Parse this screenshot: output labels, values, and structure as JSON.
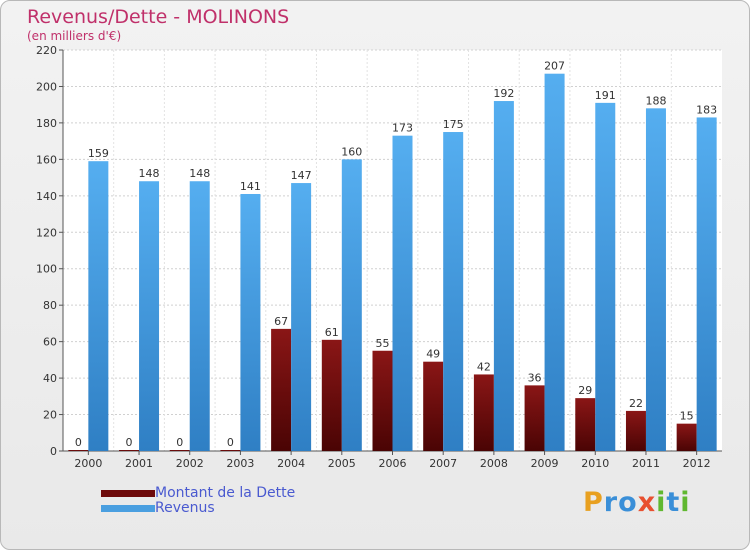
{
  "chart_data": {
    "type": "bar",
    "title": "Revenus/Dette - MOLINONS",
    "subtitle": "(en milliers d'€)",
    "categories": [
      "2000",
      "2001",
      "2002",
      "2003",
      "2004",
      "2005",
      "2006",
      "2007",
      "2008",
      "2009",
      "2010",
      "2011",
      "2012"
    ],
    "series": [
      {
        "name": "Montant de la Dette",
        "color": "#6e0a0a",
        "values": [
          0,
          0,
          0,
          0,
          67,
          61,
          55,
          49,
          42,
          36,
          29,
          22,
          15
        ]
      },
      {
        "name": "Revenus",
        "color": "#4a9fe0",
        "values": [
          159,
          148,
          148,
          141,
          147,
          160,
          173,
          175,
          192,
          207,
          191,
          188,
          183
        ]
      }
    ],
    "ylim": [
      0,
      220
    ],
    "yticks": [
      0,
      20,
      40,
      60,
      80,
      100,
      120,
      140,
      160,
      180,
      200,
      220
    ],
    "grid": true,
    "legend_position": "bottom-left"
  },
  "logo": {
    "letters": [
      {
        "char": "P",
        "color": "#e8a020"
      },
      {
        "char": "r",
        "color": "#3a8fd8"
      },
      {
        "char": "o",
        "color": "#3a8fd8"
      },
      {
        "char": "x",
        "color": "#e85030"
      },
      {
        "char": "i",
        "color": "#60b830"
      },
      {
        "char": "t",
        "color": "#3a8fd8"
      },
      {
        "char": "i",
        "color": "#60b830"
      }
    ]
  }
}
